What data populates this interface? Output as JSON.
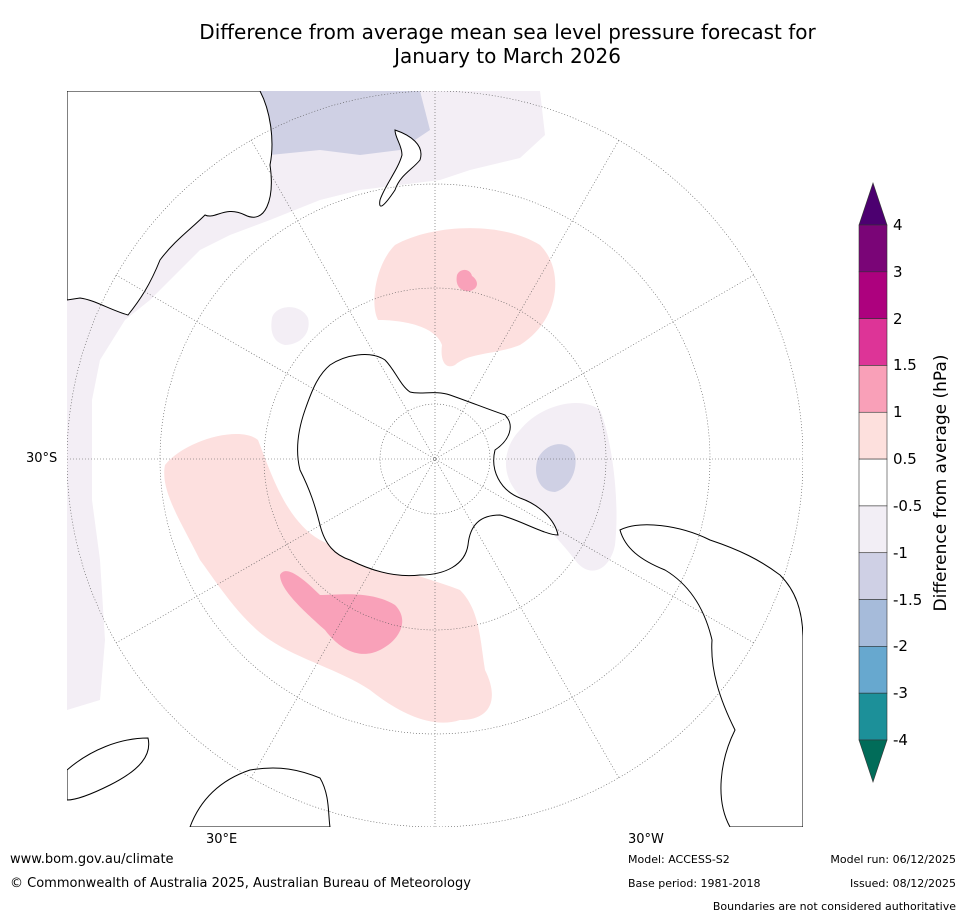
{
  "title": {
    "line1": "Difference from average mean sea level pressure forecast for",
    "line2": "January to March 2026"
  },
  "map": {
    "lat_label": "30°S",
    "lon_labels": {
      "east": "30°E",
      "west": "30°W"
    },
    "colors": {
      "ocean": "#ffffff",
      "land_outline": "#000000",
      "grid": "#555555",
      "light_neg": "#f3eef5",
      "mid_neg": "#cfd0e4",
      "light_pos": "#fde0df",
      "mid_pos": "#f9a1b9"
    }
  },
  "colorbar": {
    "title": "Difference from average (hPa)",
    "labels": [
      "4",
      "3",
      "2",
      "1.5",
      "1",
      "0.5",
      "-0.5",
      "-1",
      "-1.5",
      "-2",
      "-3",
      "-4"
    ],
    "bins": [
      {
        "color": "#4c0070"
      },
      {
        "color": "#7a0577"
      },
      {
        "color": "#ad017e"
      },
      {
        "color": "#dd3497"
      },
      {
        "color": "#f9a0b8"
      },
      {
        "color": "#fde0dd"
      },
      {
        "color": "#ffffff"
      },
      {
        "color": "#f2eef5"
      },
      {
        "color": "#cfd0e5"
      },
      {
        "color": "#a6bbda"
      },
      {
        "color": "#67a8cf"
      },
      {
        "color": "#1c9099"
      },
      {
        "color": "#016c59"
      }
    ]
  },
  "footer": {
    "website": "www.bom.gov.au/climate",
    "copyright": "© Commonwealth of Australia 2025, Australian Bureau of Meteorology",
    "model": "Model: ACCESS-S2",
    "base_period": "Base period: 1981-2018",
    "model_run": "Model run: 06/12/2025",
    "issued": "Issued: 08/12/2025",
    "disclaimer": "Boundaries are not considered authoritative"
  }
}
